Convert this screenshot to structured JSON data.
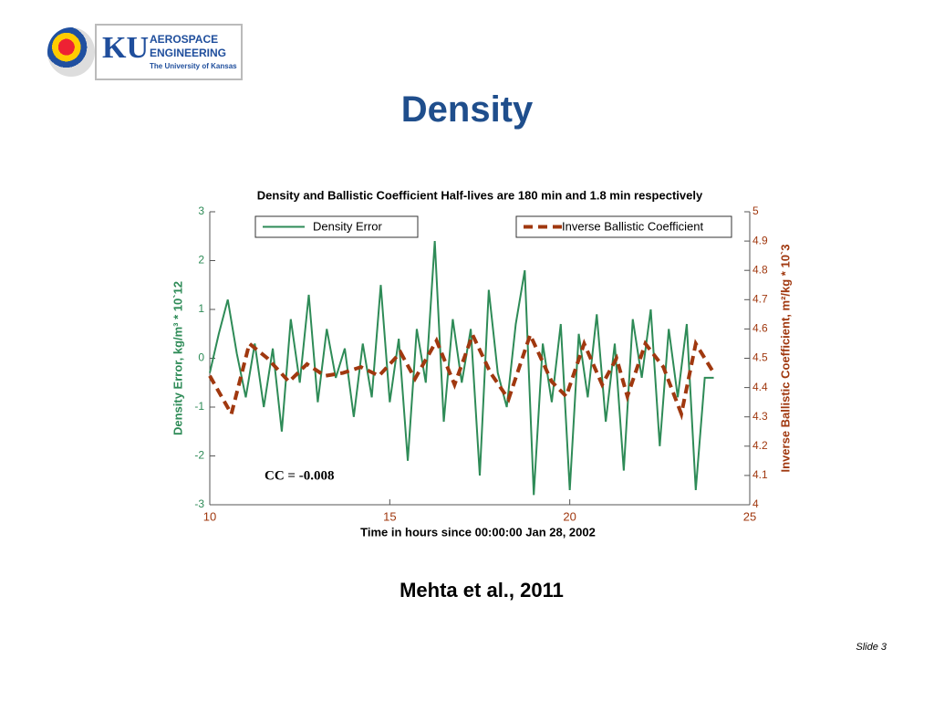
{
  "logo": {
    "mark": "KU",
    "line1": "AEROSPACE",
    "line2": "ENGINEERING",
    "line3": "The University of Kansas"
  },
  "title": "Density",
  "caption": "Mehta et al., 2011",
  "slide_label": "Slide 3",
  "chart_data": {
    "type": "line",
    "title": "Density and Ballistic Coefficient Half-lives are 180 min and 1.8 min respectively",
    "x_label": "Time in hours since 00:00:00 Jan 28, 2002",
    "y_label": "Density Error, kg/m³ * 10`12",
    "y2_label": "Inverse Ballistic Coefficient, m²/kg * 10`3",
    "annotation": "CC = -0.008",
    "xlim": [
      10,
      25
    ],
    "xticks": [
      10,
      15,
      20,
      25
    ],
    "ylim": [
      -3,
      3
    ],
    "yticks": [
      -3,
      -2,
      -1,
      0,
      1,
      2,
      3
    ],
    "y2lim": [
      4,
      5
    ],
    "y2ticks": [
      4,
      4.1,
      4.2,
      4.3,
      4.4,
      4.5,
      4.6,
      4.7,
      4.8,
      4.9,
      5
    ],
    "series": [
      {
        "name": "Density Error",
        "color": "#2e8b57",
        "dash": false,
        "x": [
          10,
          10.25,
          10.5,
          10.75,
          11,
          11.25,
          11.5,
          11.75,
          12,
          12.25,
          12.5,
          12.75,
          13,
          13.25,
          13.5,
          13.75,
          14,
          14.25,
          14.5,
          14.75,
          15,
          15.25,
          15.5,
          15.75,
          16,
          16.25,
          16.5,
          16.75,
          17,
          17.25,
          17.5,
          17.75,
          18,
          18.25,
          18.5,
          18.75,
          19,
          19.25,
          19.5,
          19.75,
          20,
          20.25,
          20.5,
          20.75,
          21,
          21.25,
          21.5,
          21.75,
          22,
          22.25,
          22.5,
          22.75,
          23,
          23.25,
          23.5,
          23.75,
          24
        ],
        "values": [
          -0.3,
          0.5,
          1.2,
          0.1,
          -0.8,
          0.3,
          -1.0,
          0.2,
          -1.5,
          0.8,
          -0.5,
          1.3,
          -0.9,
          0.6,
          -0.4,
          0.2,
          -1.2,
          0.3,
          -0.8,
          1.5,
          -0.9,
          0.4,
          -2.1,
          0.6,
          -0.5,
          2.4,
          -1.3,
          0.8,
          -0.5,
          0.6,
          -2.4,
          1.4,
          -0.3,
          -1.0,
          0.7,
          1.8,
          -2.8,
          0.3,
          -0.9,
          0.7,
          -2.7,
          0.5,
          -0.8,
          0.9,
          -1.3,
          0.3,
          -2.3,
          0.8,
          -0.4,
          1.0,
          -1.8,
          0.6,
          -0.8,
          0.7,
          -2.7,
          -0.4,
          -0.4
        ]
      },
      {
        "name": "Inverse Ballistic Coefficient",
        "color": "#a0380f",
        "dash": true,
        "axis": "y2",
        "x": [
          10,
          10.6,
          11.1,
          11.6,
          12.2,
          12.7,
          13.2,
          13.7,
          14.2,
          14.7,
          15.3,
          15.7,
          16.3,
          16.8,
          17.3,
          17.8,
          18.3,
          18.9,
          19.5,
          19.9,
          20.4,
          20.9,
          21.3,
          21.6,
          22.1,
          22.6,
          23.1,
          23.5,
          24
        ],
        "values": [
          4.44,
          4.31,
          4.55,
          4.5,
          4.42,
          4.48,
          4.44,
          4.45,
          4.47,
          4.44,
          4.52,
          4.43,
          4.56,
          4.41,
          4.58,
          4.45,
          4.36,
          4.58,
          4.42,
          4.37,
          4.55,
          4.41,
          4.5,
          4.37,
          4.55,
          4.47,
          4.31,
          4.55,
          4.45
        ]
      }
    ]
  }
}
